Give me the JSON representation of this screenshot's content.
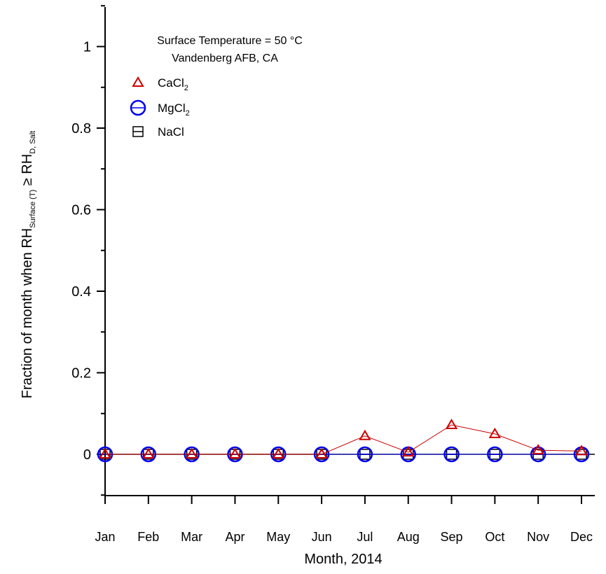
{
  "chart_data": {
    "type": "line",
    "annotation": {
      "line1": "Surface Temperature = 50 °C",
      "line2": "Vandenberg AFB, CA"
    },
    "xlabel": "Month, 2014",
    "ylabel": {
      "prefix": "Fraction of month when RH",
      "sub1": "Surface (T)",
      "middle": " ≥ RH",
      "sub2": "D, Salt"
    },
    "categories": [
      "Jan",
      "Feb",
      "Mar",
      "Apr",
      "May",
      "Jun",
      "Jul",
      "Aug",
      "Sep",
      "Oct",
      "Nov",
      "Dec"
    ],
    "ylim": [
      -0.1,
      1.1
    ],
    "yticks": [
      0,
      0.2,
      0.4,
      0.6,
      0.8,
      1
    ],
    "ytick_labels": [
      "0",
      "0.2",
      "0.4",
      "0.6",
      "0.8",
      "1"
    ],
    "grid": false,
    "legend_position": "top-left",
    "series": [
      {
        "name": "CaCl",
        "subscript": "2",
        "marker": "triangle",
        "color": "#cc0000",
        "line": true,
        "values": [
          0,
          0,
          0,
          0,
          0,
          0,
          0.045,
          0.005,
          0.072,
          0.05,
          0.01,
          0.008
        ]
      },
      {
        "name": "MgCl",
        "subscript": "2",
        "marker": "circle",
        "color": "#0000ee",
        "line": true,
        "values": [
          0,
          0,
          0,
          0,
          0,
          0,
          0,
          0,
          0,
          0,
          0,
          0
        ]
      },
      {
        "name": "NaCl",
        "subscript": "",
        "marker": "square",
        "color": "#000000",
        "line": true,
        "values": [
          0,
          0,
          0,
          0,
          0,
          0,
          0,
          0,
          0,
          0,
          0,
          0
        ]
      }
    ]
  }
}
